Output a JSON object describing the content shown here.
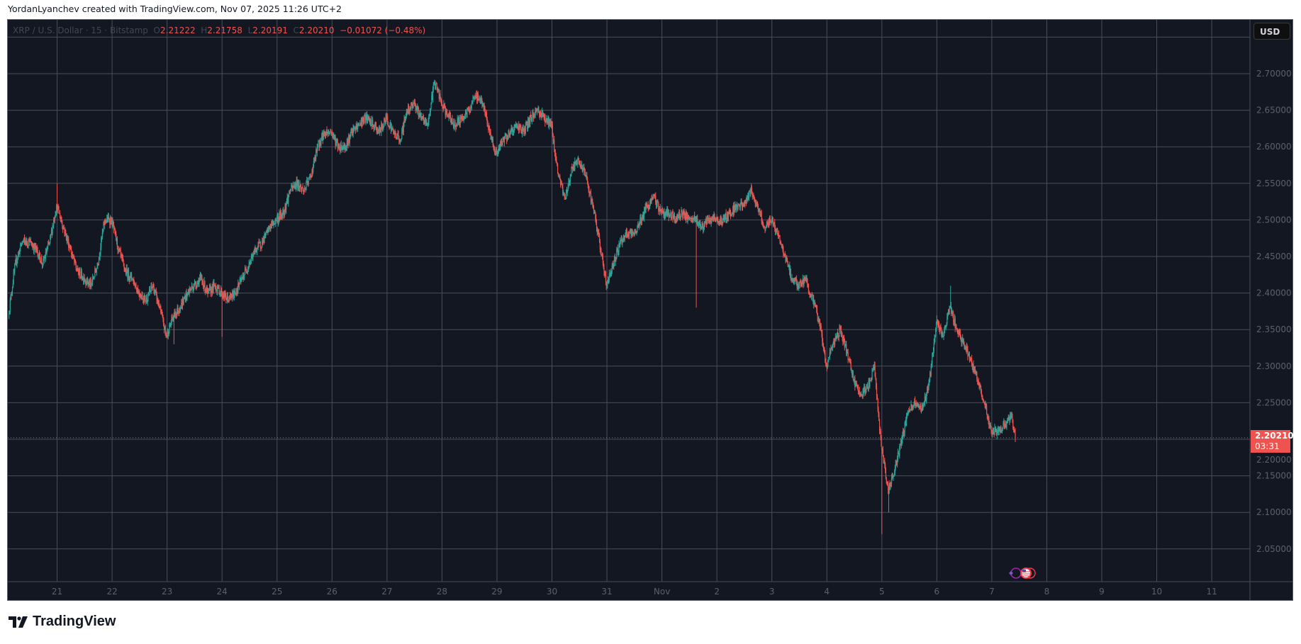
{
  "credit": "YordanLyanchev created with TradingView.com, Nov 07, 2025 11:26 UTC+2",
  "legend": {
    "symbol": "XRP / U.S. Dollar · 15 · Bitstamp",
    "o_label": "O",
    "o": "2.21222",
    "h_label": "H",
    "h": "2.21758",
    "l_label": "L",
    "l": "2.20191",
    "c_label": "C",
    "c": "2.20210",
    "change": "−0.01072 (−0.48%)"
  },
  "currency_button": "USD",
  "last_price": {
    "price": "2.20210",
    "countdown": "03:31"
  },
  "brand": "TradingView",
  "colors": {
    "background": "#131722",
    "up": "#26a69a",
    "down": "#ef5350",
    "grid": "#4a4e5a",
    "axis_text": "#5d606b"
  },
  "chart_data": {
    "type": "candlestick",
    "symbol": "XRP / U.S. Dollar",
    "interval": "15",
    "exchange": "Bitstamp",
    "ylim": [
      2.0,
      2.76
    ],
    "y_ticks": [
      "2.70000",
      "2.65000",
      "2.60000",
      "2.55000",
      "2.50000",
      "2.45000",
      "2.40000",
      "2.35000",
      "2.30000",
      "2.25000",
      "2.20000",
      "2.15000",
      "2.10000",
      "2.05000"
    ],
    "x_ticks": [
      "21",
      "22",
      "23",
      "24",
      "25",
      "26",
      "27",
      "28",
      "29",
      "30",
      "31",
      "Nov",
      "2",
      "3",
      "4",
      "5",
      "6",
      "7",
      "8",
      "9",
      "10",
      "11"
    ],
    "grid": true,
    "current_price": 2.2021,
    "close_every_3h_from_oct20_03h": [
      2.37,
      2.44,
      2.47,
      2.47,
      2.46,
      2.44,
      2.47,
      2.52,
      2.49,
      2.46,
      2.43,
      2.42,
      2.41,
      2.44,
      2.5,
      2.5,
      2.46,
      2.43,
      2.42,
      2.4,
      2.39,
      2.41,
      2.38,
      2.34,
      2.37,
      2.38,
      2.4,
      2.41,
      2.42,
      2.4,
      2.41,
      2.4,
      2.39,
      2.4,
      2.42,
      2.44,
      2.46,
      2.47,
      2.49,
      2.5,
      2.51,
      2.54,
      2.55,
      2.54,
      2.56,
      2.6,
      2.62,
      2.62,
      2.6,
      2.6,
      2.62,
      2.63,
      2.64,
      2.63,
      2.62,
      2.64,
      2.62,
      2.61,
      2.65,
      2.66,
      2.64,
      2.63,
      2.69,
      2.66,
      2.64,
      2.63,
      2.64,
      2.65,
      2.67,
      2.66,
      2.62,
      2.59,
      2.61,
      2.62,
      2.63,
      2.62,
      2.64,
      2.65,
      2.64,
      2.63,
      2.56,
      2.53,
      2.57,
      2.58,
      2.56,
      2.52,
      2.47,
      2.41,
      2.44,
      2.47,
      2.48,
      2.48,
      2.5,
      2.52,
      2.53,
      2.51,
      2.51,
      2.5,
      2.51,
      2.5,
      2.5,
      2.49,
      2.5,
      2.5,
      2.5,
      2.51,
      2.52,
      2.52,
      2.54,
      2.52,
      2.49,
      2.5,
      2.48,
      2.45,
      2.42,
      2.41,
      2.42,
      2.39,
      2.36,
      2.3,
      2.33,
      2.35,
      2.32,
      2.28,
      2.26,
      2.27,
      2.3,
      2.19,
      2.13,
      2.16,
      2.2,
      2.24,
      2.25,
      2.24,
      2.28,
      2.36,
      2.34,
      2.38,
      2.35,
      2.33,
      2.31,
      2.28,
      2.25,
      2.21,
      2.21,
      2.22,
      2.23,
      2.2021
    ],
    "extremes": [
      {
        "time": "Oct 21 00:00",
        "high": 2.55
      },
      {
        "time": "Oct 23 03:00",
        "low": 2.33
      },
      {
        "time": "Oct 24 00:00",
        "low": 2.34
      },
      {
        "time": "Nov 1 15:00",
        "low": 2.38
      },
      {
        "time": "Nov 5 00:00",
        "low": 2.07
      },
      {
        "time": "Nov 5 03:00",
        "low": 2.1
      },
      {
        "time": "Nov 6 06:00",
        "high": 2.41
      }
    ]
  }
}
